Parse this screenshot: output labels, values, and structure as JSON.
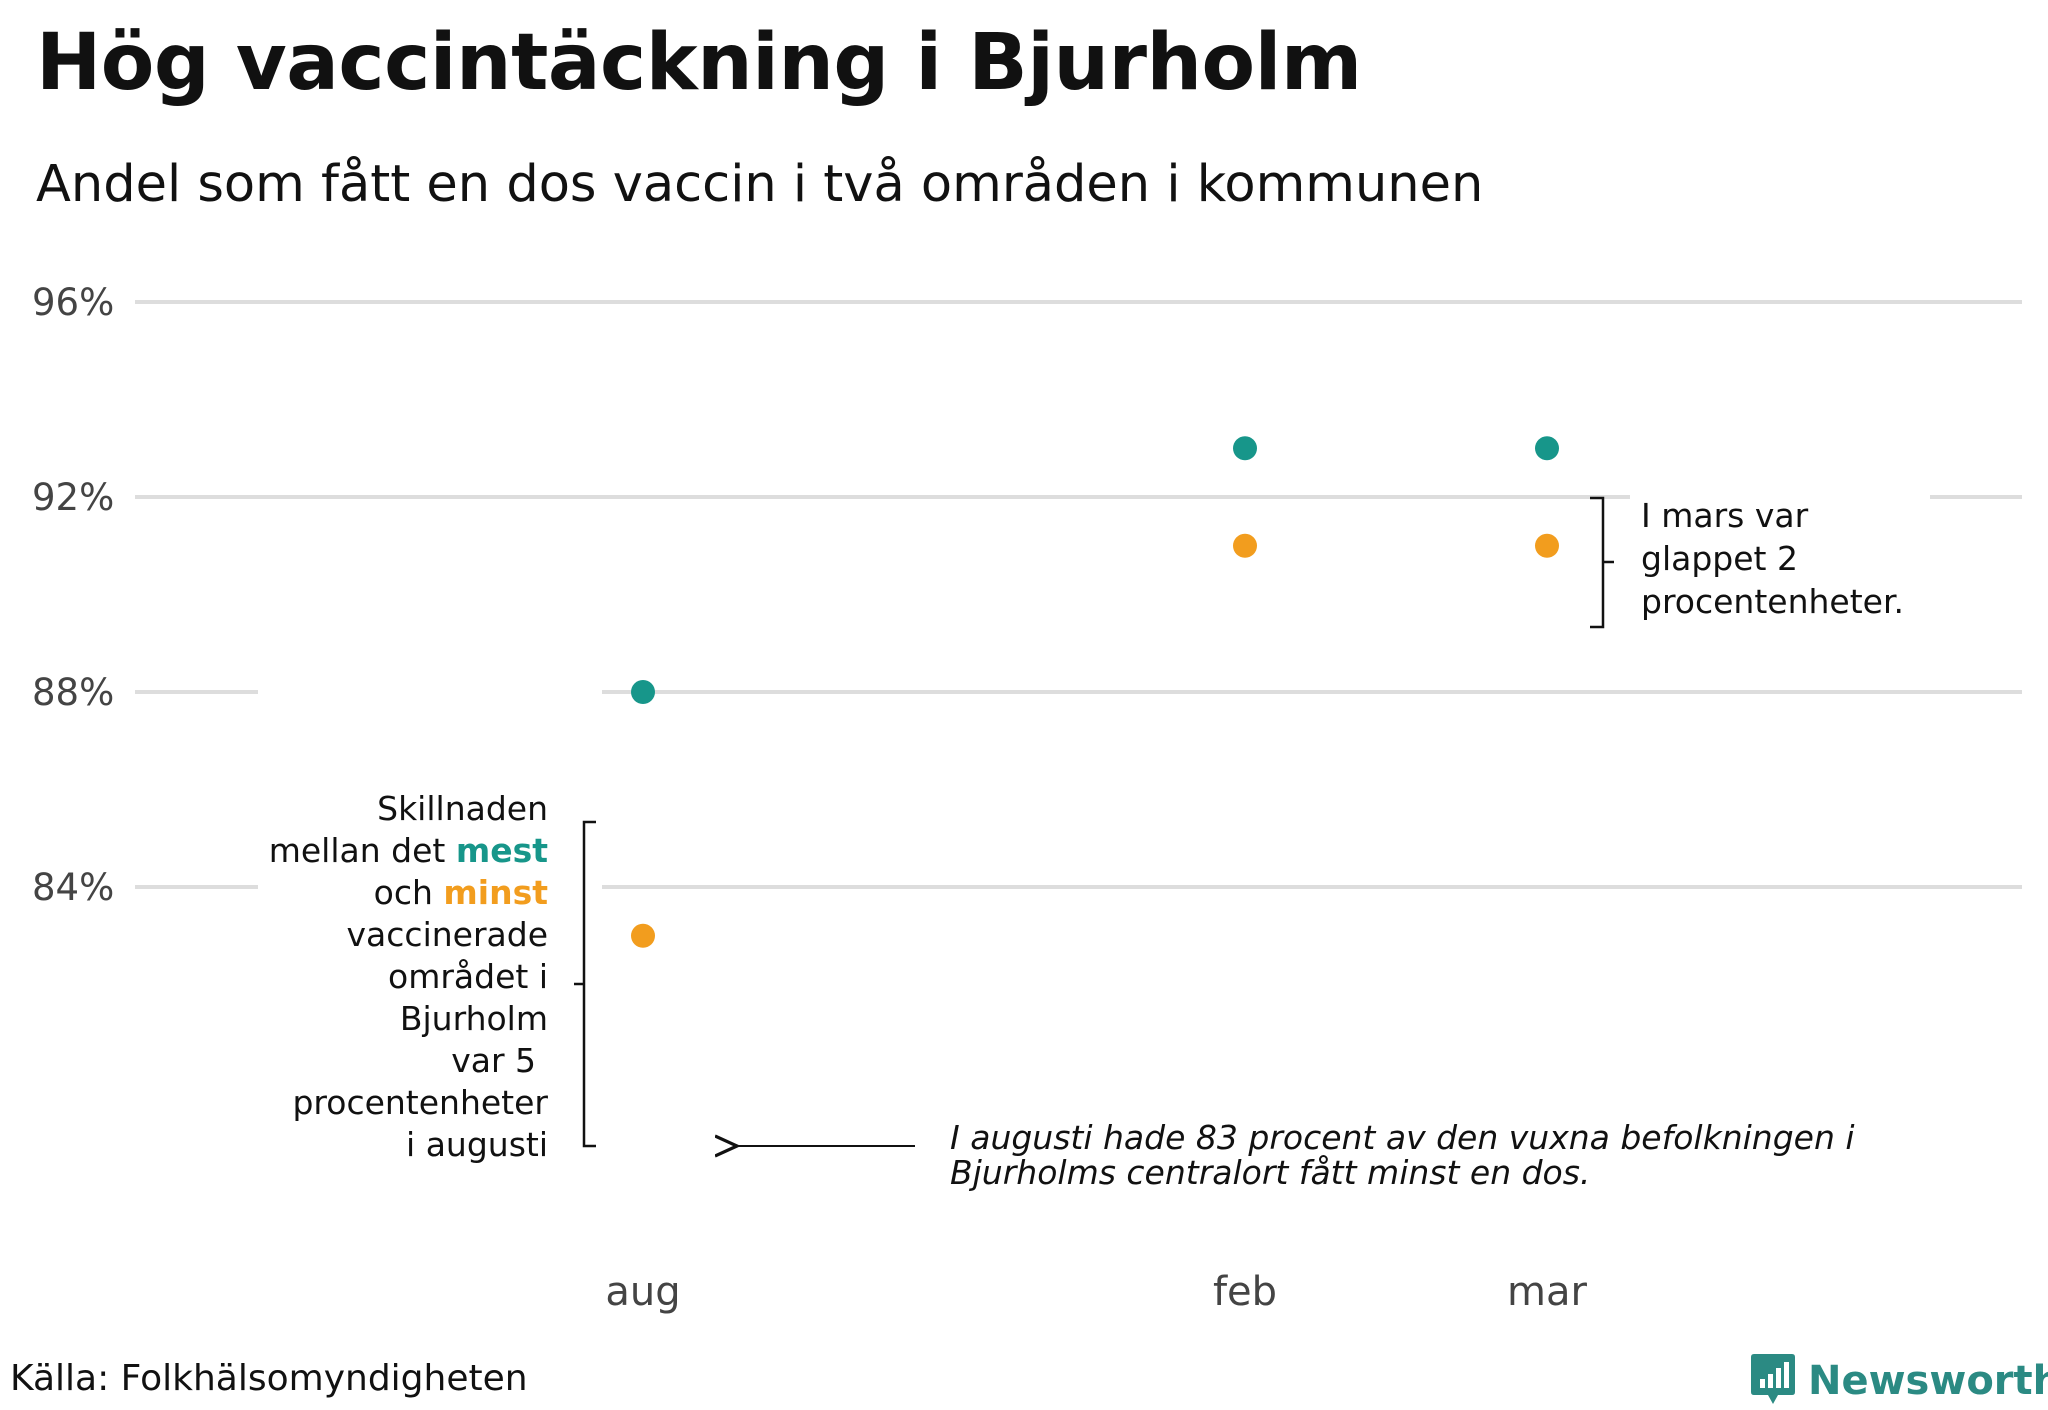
{
  "title": "Hög vaccintäckning i Bjurholm",
  "subtitle": "Andel som fått en dos vaccin i två områden i kommunen",
  "source": "Källa: Folkhälsomyndigheten",
  "brand": "Newsworthy",
  "colors": {
    "most": "#17968a",
    "least": "#f29d1e",
    "brand": "#2b8a83"
  },
  "chart_data": {
    "type": "scatter",
    "title": "Hög vaccintäckning i Bjurholm",
    "subtitle": "Andel som fått en dos vaccin i två områden i kommunen",
    "categories": [
      "aug",
      "feb",
      "mar"
    ],
    "series": [
      {
        "name": "mest",
        "values": [
          88,
          93,
          93
        ]
      },
      {
        "name": "minst",
        "values": [
          83,
          91,
          91
        ]
      }
    ],
    "yticks": [
      84,
      88,
      92,
      96
    ],
    "ytick_labels": [
      "84%",
      "88%",
      "92%",
      "96%"
    ],
    "ylim": [
      80,
      96
    ],
    "grid": true
  },
  "annotations": {
    "left_lines": [
      "Skillnaden",
      "mellan det ",
      "mest",
      "och ",
      "minst",
      "vaccinerade",
      "området i",
      "Bjurholm",
      "var 5",
      "procentenheter",
      "i augusti"
    ],
    "right_lines": [
      "I mars var",
      "glappet 2",
      "procentenheter."
    ],
    "bottom_lines": [
      "I augusti hade 83 procent av den vuxna befolkningen i",
      "Bjurholms centralort fått minst en dos."
    ]
  }
}
